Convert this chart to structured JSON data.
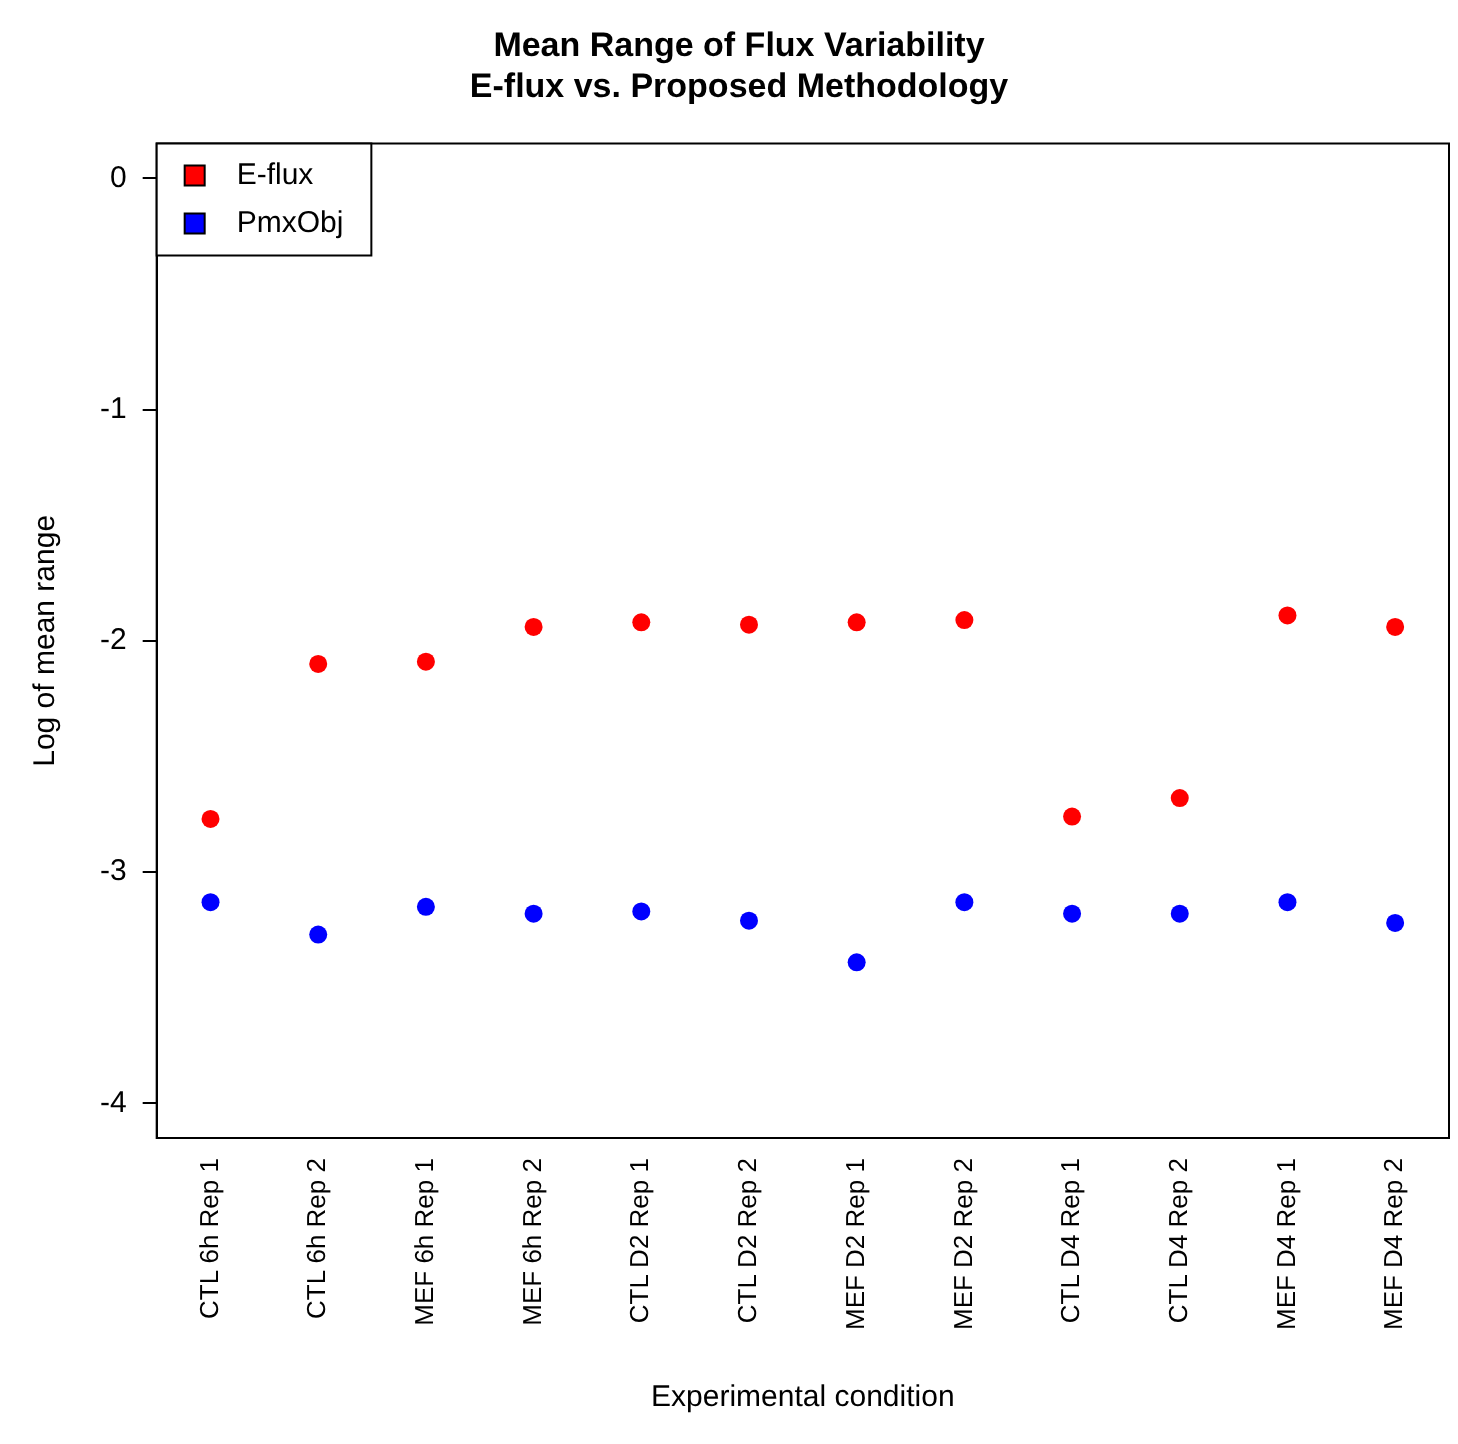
{
  "chart_data": {
    "type": "scatter",
    "title": "Mean Range of Flux Variability\nE-flux vs. Proposed Methodology",
    "xlabel": "Experimental condition",
    "ylabel": "Log of mean range",
    "categories": [
      "CTL 6h Rep 1",
      "CTL 6h Rep 2",
      "MEF 6h Rep 1",
      "MEF 6h Rep 2",
      "CTL D2 Rep 1",
      "CTL D2 Rep 2",
      "MEF D2 Rep 1",
      "MEF D2 Rep 2",
      "CTL D4 Rep 1",
      "CTL D4 Rep 2",
      "MEF D4 Rep 1",
      "MEF D4 Rep 2"
    ],
    "series": [
      {
        "name": "E-flux",
        "color": "#ff0000",
        "values": [
          -2.77,
          -2.1,
          -2.09,
          -1.94,
          -1.92,
          -1.93,
          -1.92,
          -1.91,
          -2.76,
          -2.68,
          -1.89,
          -1.94
        ]
      },
      {
        "name": "PmxObj",
        "color": "#0000ff",
        "values": [
          -3.13,
          -3.27,
          -3.15,
          -3.18,
          -3.17,
          -3.21,
          -3.39,
          -3.13,
          -3.18,
          -3.18,
          -3.13,
          -3.22
        ]
      }
    ],
    "ylim": [
      -4.15,
      0.15
    ],
    "yticks": [
      -4,
      -3,
      -2,
      -1,
      0
    ],
    "grid": false,
    "legend": "top left",
    "marker": "circle"
  }
}
